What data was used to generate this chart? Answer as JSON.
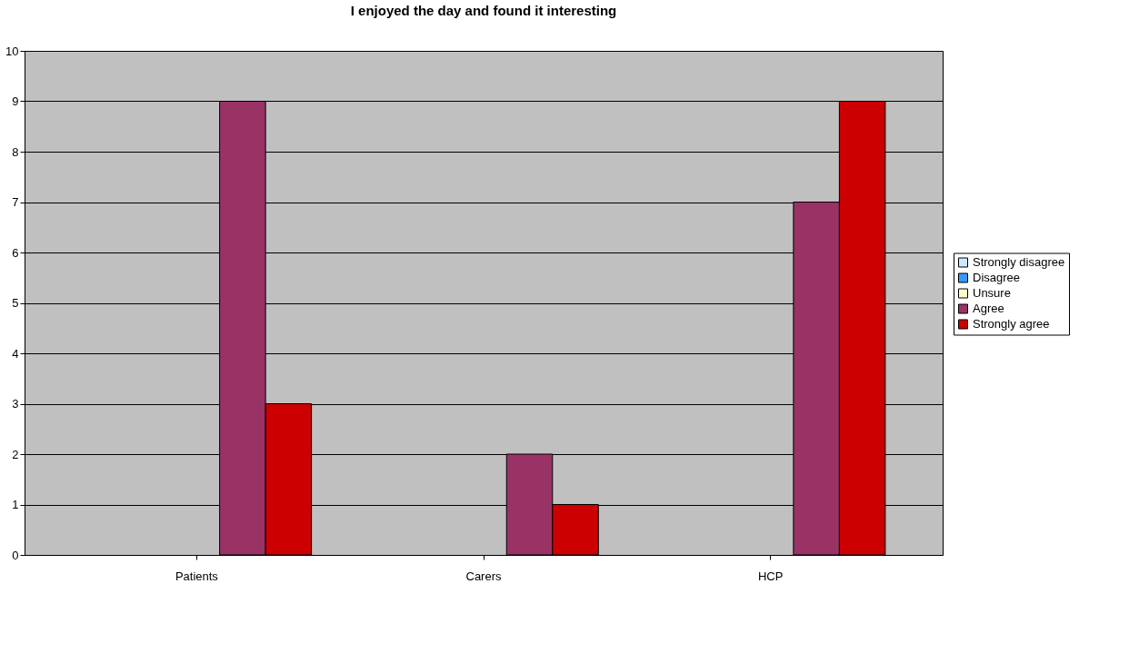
{
  "chart_data": {
    "type": "bar",
    "title": "I enjoyed the day and found it interesting",
    "categories": [
      "Patients",
      "Carers",
      "HCP"
    ],
    "series": [
      {
        "name": "Strongly disagree",
        "color": "#cce8ff",
        "values": [
          null,
          null,
          null
        ]
      },
      {
        "name": "Disagree",
        "color": "#3399ff",
        "values": [
          null,
          null,
          null
        ]
      },
      {
        "name": "Unsure",
        "color": "#ffffcc",
        "values": [
          null,
          null,
          null
        ]
      },
      {
        "name": "Agree",
        "color": "#993366",
        "values": [
          9,
          2,
          7
        ]
      },
      {
        "name": "Strongly agree",
        "color": "#cc0000",
        "values": [
          3,
          1,
          9
        ]
      }
    ],
    "ylim": [
      0,
      10
    ],
    "yticks": [
      0,
      1,
      2,
      3,
      4,
      5,
      6,
      7,
      8,
      9,
      10
    ],
    "grid": "y",
    "legend": "right"
  }
}
